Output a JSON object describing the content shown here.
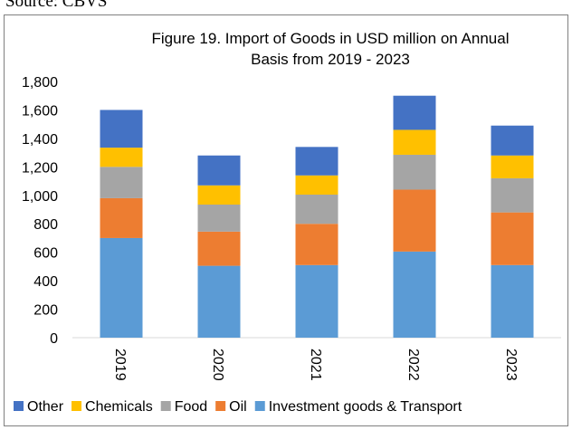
{
  "source_text": "Source: CBVS",
  "chart_data": {
    "type": "bar",
    "stacked": true,
    "title_lines": [
      "Figure 19. Import of Goods in USD million on Annual",
      "Basis from 2019 - 2023"
    ],
    "categories": [
      "2019",
      "2020",
      "2021",
      "2022",
      "2023"
    ],
    "series": [
      {
        "name": "Investment goods & Transport",
        "color": "#5B9BD5",
        "values": [
          700,
          505,
          510,
          605,
          510
        ]
      },
      {
        "name": "Oil",
        "color": "#ED7D31",
        "values": [
          280,
          240,
          290,
          435,
          370
        ]
      },
      {
        "name": "Food",
        "color": "#A5A5A5",
        "values": [
          220,
          190,
          205,
          245,
          240
        ]
      },
      {
        "name": "Chemicals",
        "color": "#FFC000",
        "values": [
          135,
          135,
          135,
          175,
          160
        ]
      },
      {
        "name": "Other",
        "color": "#4472C4",
        "values": [
          265,
          210,
          200,
          240,
          210
        ]
      }
    ],
    "legend_order": [
      "Other",
      "Chemicals",
      "Food",
      "Oil",
      "Investment goods & Transport"
    ],
    "ylim": [
      0,
      1800
    ],
    "yticks": [
      0,
      200,
      400,
      600,
      800,
      1000,
      1200,
      1400,
      1600,
      1800
    ],
    "ytick_labels": [
      "0",
      "200",
      "400",
      "600",
      "800",
      "1,000",
      "1,200",
      "1,400",
      "1,600",
      "1,800"
    ],
    "xlabel": "",
    "ylabel": "",
    "grid": false,
    "legend_position": "bottom"
  }
}
